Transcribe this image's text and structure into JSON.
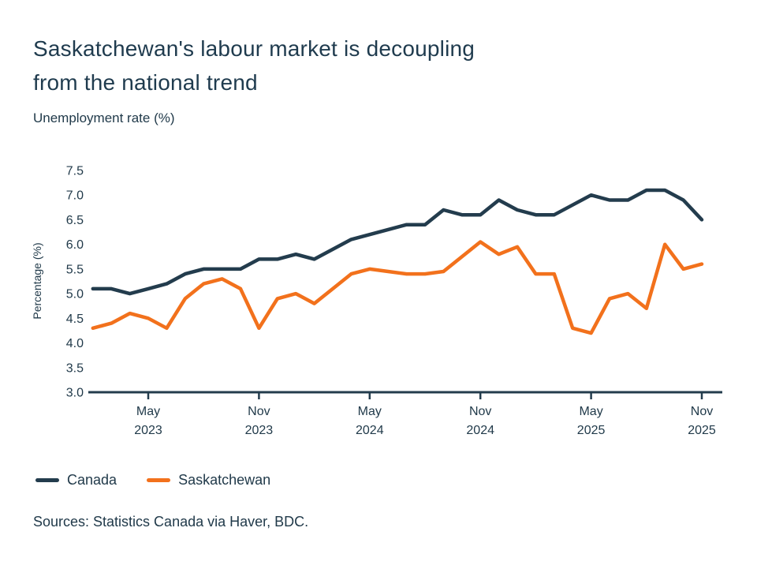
{
  "page": {
    "title_line1": "Saskatchewan's labour market is decoupling",
    "title_line2": "from the national trend",
    "subtitle": "Unemployment rate (%)",
    "source": "Sources: Statistics Canada via Haver, BDC."
  },
  "colors": {
    "navy": "#233c4d",
    "orange": "#f2711c",
    "text": "#213a4a",
    "background": "#ffffff"
  },
  "legend": {
    "items": [
      {
        "label": "Canada"
      },
      {
        "label": "Saskatchewan"
      }
    ]
  },
  "chart_data": {
    "type": "line",
    "title": "Saskatchewan's labour market is decoupling from the national trend",
    "subtitle": "Unemployment rate (%)",
    "xlabel": "",
    "ylabel": "Percentage (%)",
    "ylim": [
      3.0,
      7.5
    ],
    "y_ticks": [
      3.0,
      3.5,
      4.0,
      4.5,
      5.0,
      5.5,
      6.0,
      6.5,
      7.0,
      7.5
    ],
    "grid": false,
    "legend_position": "bottom",
    "x": [
      "Feb 2023",
      "Mar 2023",
      "Apr 2023",
      "May 2023",
      "Jun 2023",
      "Jul 2023",
      "Aug 2023",
      "Sep 2023",
      "Oct 2023",
      "Nov 2023",
      "Dec 2023",
      "Jan 2024",
      "Feb 2024",
      "Mar 2024",
      "Apr 2024",
      "May 2024",
      "Jun 2024",
      "Jul 2024",
      "Aug 2024",
      "Sep 2024",
      "Oct 2024",
      "Nov 2024",
      "Dec 2024",
      "Jan 2025",
      "Feb 2025",
      "Mar 2025",
      "Apr 2025",
      "May 2025",
      "Jun 2025",
      "Jul 2025",
      "Aug 2025",
      "Sep 2025",
      "Oct 2025",
      "Nov 2025"
    ],
    "x_ticks": [
      {
        "month": "May",
        "year": "2023"
      },
      {
        "month": "Nov",
        "year": "2023"
      },
      {
        "month": "May",
        "year": "2024"
      },
      {
        "month": "Nov",
        "year": "2024"
      },
      {
        "month": "May",
        "year": "2025"
      },
      {
        "month": "Nov",
        "year": "2025"
      }
    ],
    "series": [
      {
        "name": "Canada",
        "color": "#233c4d",
        "values": [
          5.1,
          5.1,
          5.0,
          5.1,
          5.2,
          5.4,
          5.5,
          5.5,
          5.5,
          5.7,
          5.7,
          5.8,
          5.7,
          5.9,
          6.1,
          6.2,
          6.3,
          6.4,
          6.4,
          6.7,
          6.6,
          6.6,
          6.9,
          6.7,
          6.6,
          6.6,
          6.8,
          7.0,
          6.9,
          6.9,
          7.1,
          7.1,
          6.9,
          6.5
        ]
      },
      {
        "name": "Saskatchewan",
        "color": "#f2711c",
        "values": [
          4.3,
          4.4,
          4.6,
          4.5,
          4.3,
          4.9,
          5.2,
          5.3,
          5.1,
          4.3,
          4.9,
          5.0,
          4.8,
          5.1,
          5.4,
          5.5,
          5.45,
          5.4,
          5.4,
          5.45,
          5.75,
          6.05,
          5.8,
          5.95,
          5.4,
          5.4,
          4.3,
          4.2,
          4.9,
          5.0,
          4.7,
          6.0,
          5.5,
          5.6
        ]
      }
    ]
  }
}
